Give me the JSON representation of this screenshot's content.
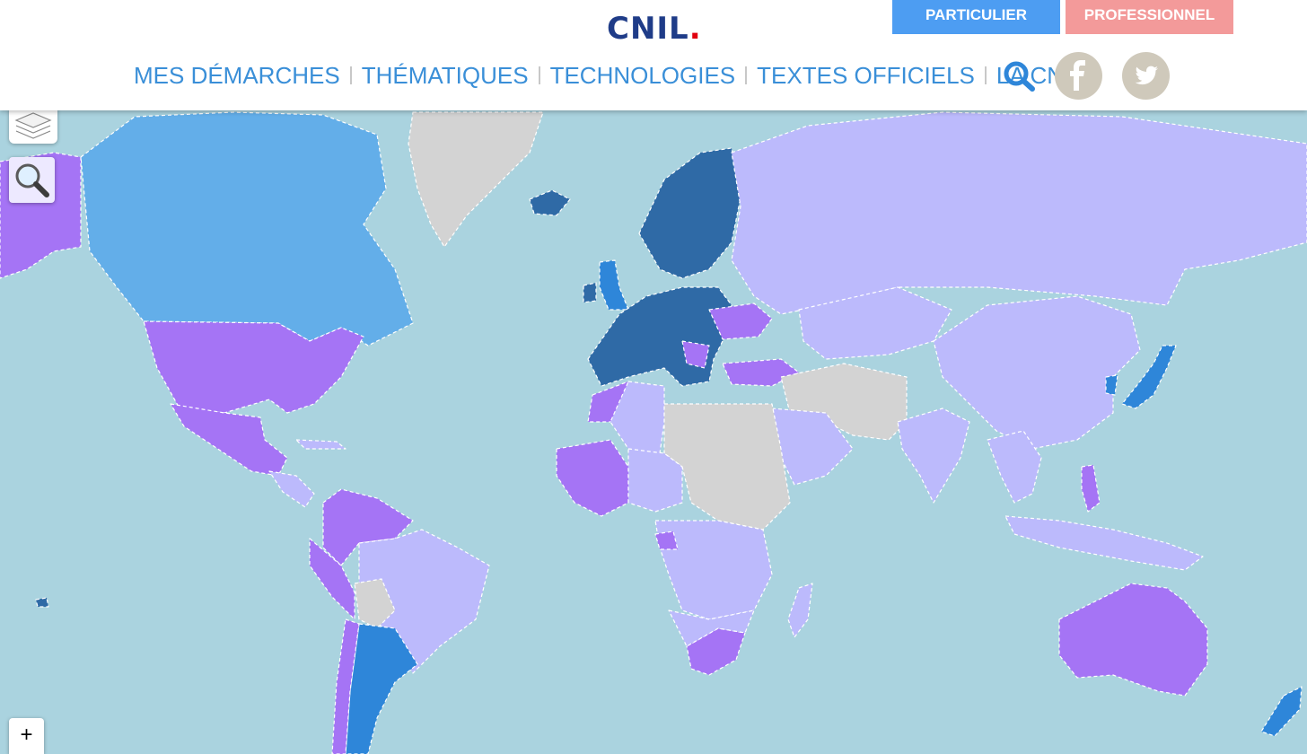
{
  "header": {
    "logo_text": "CNIL",
    "logo_dot": ".",
    "audience_buttons": {
      "particulier": "PARTICULIER",
      "professionnel": "PROFESSIONNEL"
    },
    "nav": [
      "MES DÉMARCHES",
      "THÉMATIQUES",
      "TECHNOLOGIES",
      "TEXTES OFFICIELS",
      "LA CNIL"
    ],
    "icons": {
      "search": "search-icon",
      "facebook": "facebook-icon",
      "twitter": "twitter-icon"
    }
  },
  "map_controls": {
    "zoom_in_label": "+",
    "layers_icon": "layers-icon",
    "zoom_tool_icon": "magnifier-icon"
  },
  "colors": {
    "ocean": "#aad3df",
    "eu_eea": "#2f6aa6",
    "adequate": "#2e86d9",
    "partial_adequacy": "#63aee9",
    "authority_and_law": "#a574f5",
    "law": "#bcbafc",
    "none": "#d3d3d3",
    "logo_blue": "#1f3c88",
    "logo_red": "#e1000f",
    "particulier_bg": "#4d9df2",
    "professionnel_bg": "#f39a9a",
    "nav_text": "#3a8fd8"
  }
}
